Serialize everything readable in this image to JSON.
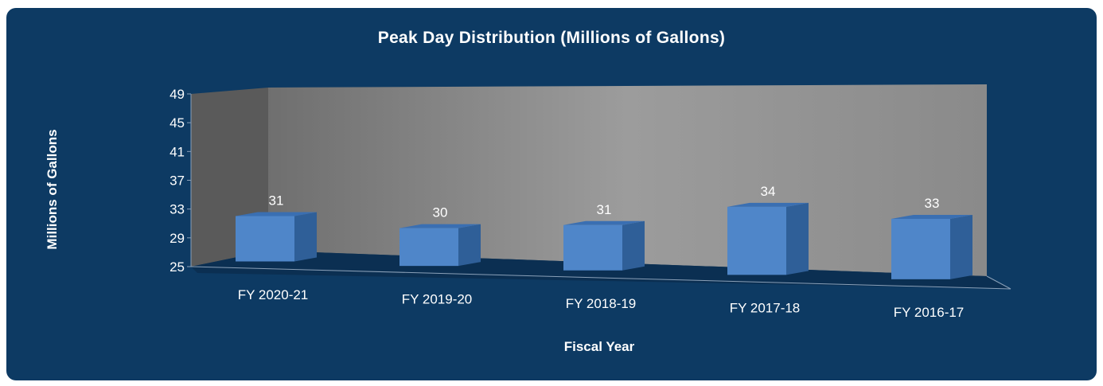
{
  "chart_data": {
    "type": "bar",
    "title": "Peak Day Distribution (Millions of Gallons)",
    "xlabel": "Fiscal Year",
    "ylabel": "Millions of Gallons",
    "categories": [
      "FY 2020-21",
      "FY 2019-20",
      "FY 2018-19",
      "FY 2017-18",
      "FY 2016-17"
    ],
    "values": [
      31,
      30,
      31,
      34,
      33
    ],
    "ylim": [
      25,
      49
    ],
    "yticks": [
      "25",
      "29",
      "33",
      "37",
      "41",
      "45",
      "49"
    ],
    "data_labels": [
      "31",
      "30",
      "31",
      "34",
      "33"
    ],
    "three_d": true,
    "grid": false,
    "legend": "none",
    "colors": {
      "background": "#0d3a63",
      "bar_front": "#4f86c9",
      "bar_side": "#2f5f98",
      "bar_top": "#3a6fb2",
      "back_wall": "#9a9a9a",
      "side_wall": "#5a5a5a",
      "floor": "#0b2f52",
      "text": "#ffffff"
    }
  }
}
